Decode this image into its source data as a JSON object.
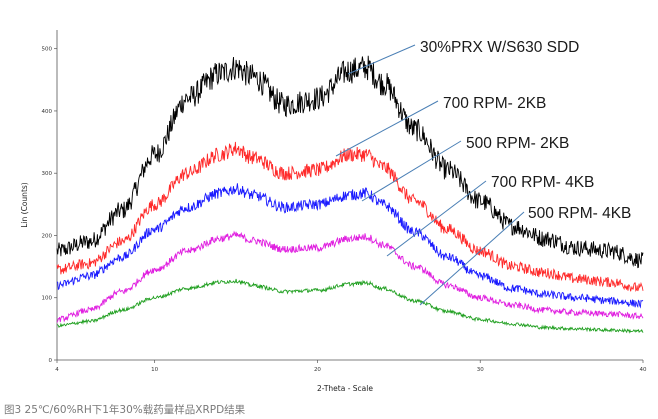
{
  "caption": "图3 25℃/60%RH下1年30%载药量样品XRPD结果",
  "chart_data": {
    "type": "line",
    "title": "",
    "xlabel": "2-Theta - Scale",
    "ylabel": "Lin (Counts)",
    "xlim": [
      4,
      40
    ],
    "ylim": [
      0,
      530
    ],
    "x_ticks": [
      4,
      10,
      20,
      30,
      40
    ],
    "y_ticks": [
      0,
      100,
      200,
      300,
      400,
      500
    ],
    "grid": false,
    "legend": "annotations with leader lines",
    "x": [
      4,
      6,
      8,
      10,
      12,
      14,
      15,
      16,
      18,
      20,
      22,
      23,
      24,
      26,
      28,
      30,
      32,
      34,
      36,
      38,
      40
    ],
    "series": [
      {
        "name": "30%PRX W/S630 SDD",
        "color": "#000000",
        "values": [
          175,
          190,
          240,
          330,
          420,
          460,
          470,
          455,
          410,
          420,
          465,
          470,
          445,
          370,
          305,
          255,
          215,
          195,
          180,
          175,
          160
        ]
      },
      {
        "name": "700 RPM- 2KB",
        "color": "#ff2a2a",
        "values": [
          145,
          155,
          190,
          250,
          300,
          330,
          340,
          325,
          300,
          305,
          330,
          330,
          310,
          255,
          210,
          175,
          150,
          140,
          130,
          125,
          115
        ]
      },
      {
        "name": "500 RPM- 2KB",
        "color": "#1a1aff",
        "values": [
          120,
          135,
          165,
          210,
          245,
          268,
          275,
          265,
          245,
          250,
          265,
          268,
          250,
          205,
          165,
          135,
          115,
          105,
          100,
          95,
          90
        ]
      },
      {
        "name": "700 RPM- 4KB",
        "color": "#e020e0",
        "values": [
          65,
          80,
          110,
          145,
          175,
          195,
          200,
          192,
          178,
          180,
          195,
          198,
          185,
          150,
          120,
          100,
          88,
          80,
          76,
          74,
          70
        ]
      },
      {
        "name": "500 RPM- 4KB",
        "color": "#22a022",
        "values": [
          55,
          62,
          80,
          100,
          115,
          125,
          127,
          120,
          110,
          112,
          122,
          124,
          115,
          95,
          78,
          65,
          58,
          52,
          50,
          48,
          46
        ]
      }
    ]
  }
}
